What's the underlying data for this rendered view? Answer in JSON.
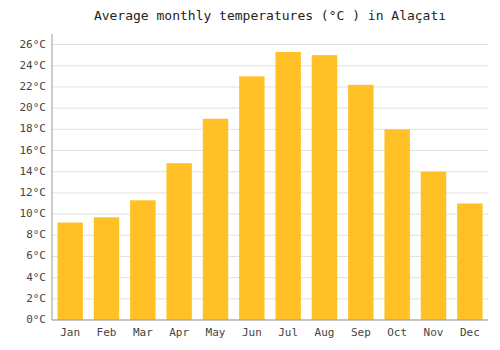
{
  "chart_data": {
    "type": "bar",
    "title": "Average monthly temperatures (°C ) in Alaçatı",
    "categories": [
      "Jan",
      "Feb",
      "Mar",
      "Apr",
      "May",
      "Jun",
      "Jul",
      "Aug",
      "Sep",
      "Oct",
      "Nov",
      "Dec"
    ],
    "values": [
      9.2,
      9.7,
      11.3,
      14.8,
      19.0,
      23.0,
      25.3,
      25.0,
      22.2,
      18.0,
      14.0,
      11.0
    ],
    "color": "#FFC125",
    "ylim": [
      0,
      27
    ],
    "yticks": [
      {
        "value": 0,
        "label": "0°C"
      },
      {
        "value": 2,
        "label": "2°C"
      },
      {
        "value": 4,
        "label": "4°C"
      },
      {
        "value": 6,
        "label": "6°C"
      },
      {
        "value": 8,
        "label": "8°C"
      },
      {
        "value": 10,
        "label": "10°C"
      },
      {
        "value": 12,
        "label": "12°C"
      },
      {
        "value": 14,
        "label": "14°C"
      },
      {
        "value": 16,
        "label": "16°C"
      },
      {
        "value": 18,
        "label": "18°C"
      },
      {
        "value": 20,
        "label": "20°C"
      },
      {
        "value": 22,
        "label": "22°C"
      },
      {
        "value": 24,
        "label": "24°C"
      },
      {
        "value": 26,
        "label": "26°C"
      }
    ],
    "grid": true
  }
}
